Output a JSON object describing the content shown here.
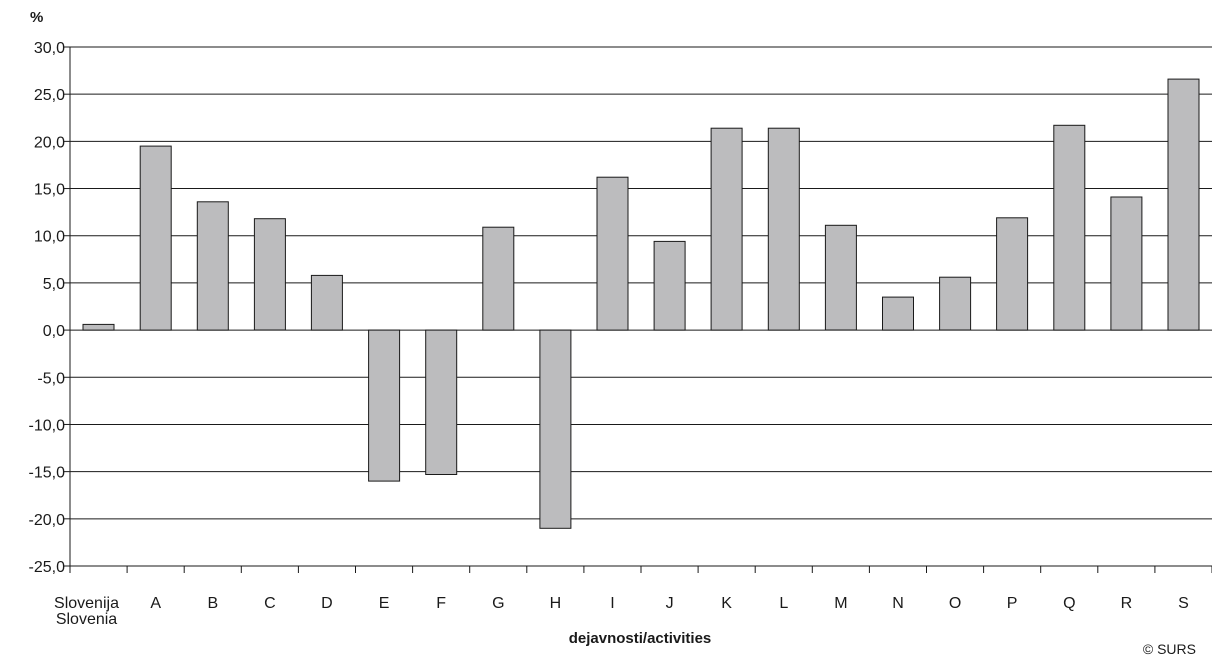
{
  "chart_data": {
    "type": "bar",
    "ylabel": "%",
    "xlabel": "dejavnosti/activities",
    "ylim": [
      -25,
      30
    ],
    "ytick_step": 5,
    "ytick_labels": [
      "30,0",
      "25,0",
      "20,0",
      "15,0",
      "10,0",
      "5,0",
      "0,0",
      "-5,0",
      "-10,0",
      "-15,0",
      "-20,0",
      "-25,0"
    ],
    "grid": true,
    "categories": [
      [
        "Slovenija",
        "Slovenia"
      ],
      [
        "A"
      ],
      [
        "B"
      ],
      [
        "C"
      ],
      [
        "D"
      ],
      [
        "E"
      ],
      [
        "F"
      ],
      [
        "G"
      ],
      [
        "H"
      ],
      [
        "I"
      ],
      [
        "J"
      ],
      [
        "K"
      ],
      [
        "L"
      ],
      [
        "M"
      ],
      [
        "N"
      ],
      [
        "O"
      ],
      [
        "P"
      ],
      [
        "Q"
      ],
      [
        "R"
      ],
      [
        "S"
      ]
    ],
    "values": [
      0.6,
      19.5,
      13.6,
      11.8,
      5.8,
      -16.0,
      -15.3,
      10.9,
      -21.0,
      16.2,
      9.4,
      21.4,
      21.4,
      11.1,
      3.5,
      5.6,
      11.9,
      21.7,
      14.1,
      26.6
    ],
    "colors": {
      "bar_fill": "#bcbcbe",
      "bar_stroke": "#1a1a1a",
      "grid": "#1a1a1a"
    }
  },
  "credit": "© SURS"
}
